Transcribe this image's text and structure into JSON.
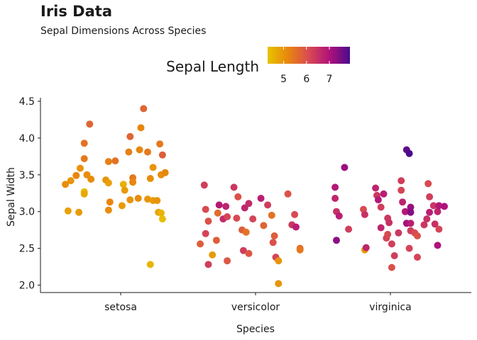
{
  "chart_data": {
    "type": "scatter",
    "title": "Iris Data",
    "subtitle": "Sepal Dimensions Across Species",
    "xlabel": "Species",
    "ylabel": "Sepal Width",
    "categories": [
      "setosa",
      "versicolor",
      "virginica"
    ],
    "ylim": [
      1.9,
      4.55
    ],
    "yticks": [
      "2.0",
      "2.5",
      "3.0",
      "3.5",
      "4.0",
      "4.5"
    ],
    "grid": false,
    "legend": {
      "title": "Sepal Length",
      "position": "top",
      "range": [
        4.3,
        7.9
      ],
      "ticks": [
        "5",
        "6",
        "7"
      ],
      "colors": [
        "#e8c300",
        "#e8860e",
        "#d84a52",
        "#b0127b",
        "#4b0a8c"
      ]
    },
    "points": [
      {
        "species": "setosa",
        "jitter": -0.41,
        "sepal_width": 3.37,
        "sepal_length": 5.1
      },
      {
        "species": "setosa",
        "jitter": -0.37,
        "sepal_width": 3.42,
        "sepal_length": 5.0
      },
      {
        "species": "setosa",
        "jitter": -0.33,
        "sepal_width": 3.49,
        "sepal_length": 5.2
      },
      {
        "species": "setosa",
        "jitter": -0.3,
        "sepal_width": 3.59,
        "sepal_length": 5.0
      },
      {
        "species": "setosa",
        "jitter": -0.27,
        "sepal_width": 3.72,
        "sepal_length": 5.4
      },
      {
        "species": "setosa",
        "jitter": -0.27,
        "sepal_width": 3.93,
        "sepal_length": 5.5
      },
      {
        "species": "setosa",
        "jitter": -0.23,
        "sepal_width": 4.19,
        "sepal_length": 5.7
      },
      {
        "species": "setosa",
        "jitter": -0.25,
        "sepal_width": 3.5,
        "sepal_length": 5.1
      },
      {
        "species": "setosa",
        "jitter": -0.22,
        "sepal_width": 3.44,
        "sepal_length": 5.1
      },
      {
        "species": "setosa",
        "jitter": -0.27,
        "sepal_width": 3.27,
        "sepal_length": 4.4
      },
      {
        "species": "setosa",
        "jitter": -0.27,
        "sepal_width": 3.24,
        "sepal_length": 4.7
      },
      {
        "species": "setosa",
        "jitter": -0.39,
        "sepal_width": 3.01,
        "sepal_length": 4.8
      },
      {
        "species": "setosa",
        "jitter": -0.31,
        "sepal_width": 2.99,
        "sepal_length": 4.9
      },
      {
        "species": "setosa",
        "jitter": -0.09,
        "sepal_width": 3.68,
        "sepal_length": 5.3
      },
      {
        "species": "setosa",
        "jitter": -0.04,
        "sepal_width": 3.69,
        "sepal_length": 5.5
      },
      {
        "species": "setosa",
        "jitter": -0.11,
        "sepal_width": 3.43,
        "sepal_length": 5.0
      },
      {
        "species": "setosa",
        "jitter": -0.09,
        "sepal_width": 3.39,
        "sepal_length": 4.8
      },
      {
        "species": "setosa",
        "jitter": -0.08,
        "sepal_width": 3.13,
        "sepal_length": 5.2
      },
      {
        "species": "setosa",
        "jitter": -0.09,
        "sepal_width": 3.02,
        "sepal_length": 5.1
      },
      {
        "species": "setosa",
        "jitter": 0.01,
        "sepal_width": 3.08,
        "sepal_length": 4.9
      },
      {
        "species": "setosa",
        "jitter": 0.02,
        "sepal_width": 3.37,
        "sepal_length": 4.6
      },
      {
        "species": "setosa",
        "jitter": 0.03,
        "sepal_width": 3.29,
        "sepal_length": 4.9
      },
      {
        "species": "setosa",
        "jitter": 0.06,
        "sepal_width": 3.81,
        "sepal_length": 5.3
      },
      {
        "species": "setosa",
        "jitter": 0.07,
        "sepal_width": 4.02,
        "sepal_length": 5.7
      },
      {
        "species": "setosa",
        "jitter": 0.09,
        "sepal_width": 3.46,
        "sepal_length": 5.4
      },
      {
        "species": "setosa",
        "jitter": 0.09,
        "sepal_width": 3.4,
        "sepal_length": 5.2
      },
      {
        "species": "setosa",
        "jitter": 0.07,
        "sepal_width": 3.16,
        "sepal_length": 5.0
      },
      {
        "species": "setosa",
        "jitter": 0.13,
        "sepal_width": 3.18,
        "sepal_length": 5.1
      },
      {
        "species": "setosa",
        "jitter": 0.14,
        "sepal_width": 3.84,
        "sepal_length": 5.2
      },
      {
        "species": "setosa",
        "jitter": 0.15,
        "sepal_width": 4.14,
        "sepal_length": 5.2
      },
      {
        "species": "setosa",
        "jitter": 0.17,
        "sepal_width": 4.4,
        "sepal_length": 5.7
      },
      {
        "species": "setosa",
        "jitter": 0.2,
        "sepal_width": 3.81,
        "sepal_length": 5.4
      },
      {
        "species": "setosa",
        "jitter": 0.22,
        "sepal_width": 3.45,
        "sepal_length": 5.1
      },
      {
        "species": "setosa",
        "jitter": 0.24,
        "sepal_width": 3.6,
        "sepal_length": 5.0
      },
      {
        "species": "setosa",
        "jitter": 0.2,
        "sepal_width": 3.17,
        "sepal_length": 5.0
      },
      {
        "species": "setosa",
        "jitter": 0.24,
        "sepal_width": 3.15,
        "sepal_length": 4.9
      },
      {
        "species": "setosa",
        "jitter": 0.29,
        "sepal_width": 3.92,
        "sepal_length": 5.4
      },
      {
        "species": "setosa",
        "jitter": 0.31,
        "sepal_width": 3.77,
        "sepal_length": 5.8
      },
      {
        "species": "setosa",
        "jitter": 0.3,
        "sepal_width": 3.5,
        "sepal_length": 5.1
      },
      {
        "species": "setosa",
        "jitter": 0.33,
        "sepal_width": 3.53,
        "sepal_length": 5.2
      },
      {
        "species": "setosa",
        "jitter": 0.27,
        "sepal_width": 3.15,
        "sepal_length": 5.0
      },
      {
        "species": "setosa",
        "jitter": 0.28,
        "sepal_width": 2.99,
        "sepal_length": 4.8
      },
      {
        "species": "setosa",
        "jitter": 0.3,
        "sepal_width": 2.98,
        "sepal_length": 4.5
      },
      {
        "species": "setosa",
        "jitter": 0.31,
        "sepal_width": 2.9,
        "sepal_length": 4.4
      },
      {
        "species": "setosa",
        "jitter": 0.22,
        "sepal_width": 2.28,
        "sepal_length": 4.5
      },
      {
        "species": "versicolor",
        "jitter": -0.41,
        "sepal_width": 2.56,
        "sepal_length": 5.8
      },
      {
        "species": "versicolor",
        "jitter": -0.37,
        "sepal_width": 3.03,
        "sepal_length": 6.1
      },
      {
        "species": "versicolor",
        "jitter": -0.37,
        "sepal_width": 2.7,
        "sepal_length": 6.2
      },
      {
        "species": "versicolor",
        "jitter": -0.38,
        "sepal_width": 3.36,
        "sepal_length": 6.3
      },
      {
        "species": "versicolor",
        "jitter": -0.35,
        "sepal_width": 2.87,
        "sepal_length": 6.0
      },
      {
        "species": "versicolor",
        "jitter": -0.32,
        "sepal_width": 2.41,
        "sepal_length": 4.9
      },
      {
        "species": "versicolor",
        "jitter": -0.35,
        "sepal_width": 2.28,
        "sepal_length": 6.3
      },
      {
        "species": "versicolor",
        "jitter": -0.27,
        "sepal_width": 3.09,
        "sepal_length": 6.9
      },
      {
        "species": "versicolor",
        "jitter": -0.28,
        "sepal_width": 2.98,
        "sepal_length": 5.6
      },
      {
        "species": "versicolor",
        "jitter": -0.22,
        "sepal_width": 3.07,
        "sepal_length": 6.7
      },
      {
        "species": "versicolor",
        "jitter": -0.24,
        "sepal_width": 2.9,
        "sepal_length": 6.6
      },
      {
        "species": "versicolor",
        "jitter": -0.29,
        "sepal_width": 2.61,
        "sepal_length": 5.8
      },
      {
        "species": "versicolor",
        "jitter": -0.21,
        "sepal_width": 2.93,
        "sepal_length": 6.2
      },
      {
        "species": "versicolor",
        "jitter": -0.21,
        "sepal_width": 2.33,
        "sepal_length": 5.9
      },
      {
        "species": "versicolor",
        "jitter": -0.16,
        "sepal_width": 3.33,
        "sepal_length": 6.4
      },
      {
        "species": "versicolor",
        "jitter": -0.13,
        "sepal_width": 3.2,
        "sepal_length": 6.0
      },
      {
        "species": "versicolor",
        "jitter": -0.14,
        "sepal_width": 2.91,
        "sepal_length": 6.1
      },
      {
        "species": "versicolor",
        "jitter": -0.08,
        "sepal_width": 3.05,
        "sepal_length": 6.7
      },
      {
        "species": "versicolor",
        "jitter": -0.05,
        "sepal_width": 3.11,
        "sepal_length": 6.6
      },
      {
        "species": "versicolor",
        "jitter": -0.1,
        "sepal_width": 2.75,
        "sepal_length": 5.8
      },
      {
        "species": "versicolor",
        "jitter": -0.07,
        "sepal_width": 2.72,
        "sepal_length": 5.5
      },
      {
        "species": "versicolor",
        "jitter": -0.09,
        "sepal_width": 2.47,
        "sepal_length": 6.3
      },
      {
        "species": "versicolor",
        "jitter": -0.02,
        "sepal_width": 2.9,
        "sepal_length": 6.2
      },
      {
        "species": "versicolor",
        "jitter": -0.05,
        "sepal_width": 2.43,
        "sepal_length": 5.9
      },
      {
        "species": "versicolor",
        "jitter": 0.04,
        "sepal_width": 3.18,
        "sepal_length": 6.8
      },
      {
        "species": "versicolor",
        "jitter": 0.09,
        "sepal_width": 3.09,
        "sepal_length": 6.3
      },
      {
        "species": "versicolor",
        "jitter": 0.06,
        "sepal_width": 2.81,
        "sepal_length": 5.7
      },
      {
        "species": "versicolor",
        "jitter": 0.12,
        "sepal_width": 2.95,
        "sepal_length": 5.5
      },
      {
        "species": "versicolor",
        "jitter": 0.14,
        "sepal_width": 2.67,
        "sepal_length": 5.8
      },
      {
        "species": "versicolor",
        "jitter": 0.13,
        "sepal_width": 2.58,
        "sepal_length": 6.0
      },
      {
        "species": "versicolor",
        "jitter": 0.15,
        "sepal_width": 2.38,
        "sepal_length": 6.2
      },
      {
        "species": "versicolor",
        "jitter": 0.17,
        "sepal_width": 2.33,
        "sepal_length": 5.0
      },
      {
        "species": "versicolor",
        "jitter": 0.17,
        "sepal_width": 2.02,
        "sepal_length": 5.0
      },
      {
        "species": "versicolor",
        "jitter": 0.24,
        "sepal_width": 3.24,
        "sepal_length": 6.0
      },
      {
        "species": "versicolor",
        "jitter": 0.27,
        "sepal_width": 2.82,
        "sepal_length": 6.4
      },
      {
        "species": "versicolor",
        "jitter": 0.29,
        "sepal_width": 2.96,
        "sepal_length": 6.1
      },
      {
        "species": "versicolor",
        "jitter": 0.3,
        "sepal_width": 2.79,
        "sepal_length": 6.8
      },
      {
        "species": "versicolor",
        "jitter": 0.33,
        "sepal_width": 2.5,
        "sepal_length": 5.6
      },
      {
        "species": "versicolor",
        "jitter": 0.33,
        "sepal_width": 2.48,
        "sepal_length": 5.4
      },
      {
        "species": "virginica",
        "jitter": -0.41,
        "sepal_width": 3.33,
        "sepal_length": 6.9
      },
      {
        "species": "virginica",
        "jitter": -0.41,
        "sepal_width": 3.18,
        "sepal_length": 6.7
      },
      {
        "species": "virginica",
        "jitter": -0.4,
        "sepal_width": 3.0,
        "sepal_length": 6.5
      },
      {
        "species": "virginica",
        "jitter": -0.4,
        "sepal_width": 2.61,
        "sepal_length": 7.3
      },
      {
        "species": "virginica",
        "jitter": -0.38,
        "sepal_width": 2.94,
        "sepal_length": 6.8
      },
      {
        "species": "virginica",
        "jitter": -0.34,
        "sepal_width": 3.6,
        "sepal_length": 7.2
      },
      {
        "species": "virginica",
        "jitter": -0.31,
        "sepal_width": 2.76,
        "sepal_length": 6.3
      },
      {
        "species": "virginica",
        "jitter": -0.2,
        "sepal_width": 3.03,
        "sepal_length": 6.1
      },
      {
        "species": "virginica",
        "jitter": -0.19,
        "sepal_width": 2.96,
        "sepal_length": 6.5
      },
      {
        "species": "virginica",
        "jitter": -0.19,
        "sepal_width": 2.48,
        "sepal_length": 4.9
      },
      {
        "species": "virginica",
        "jitter": -0.18,
        "sepal_width": 2.51,
        "sepal_length": 6.7
      },
      {
        "species": "virginica",
        "jitter": -0.11,
        "sepal_width": 3.32,
        "sepal_length": 6.7
      },
      {
        "species": "virginica",
        "jitter": -0.1,
        "sepal_width": 3.22,
        "sepal_length": 6.4
      },
      {
        "species": "virginica",
        "jitter": -0.09,
        "sepal_width": 3.16,
        "sepal_length": 6.9
      },
      {
        "species": "virginica",
        "jitter": -0.07,
        "sepal_width": 3.06,
        "sepal_length": 6.3
      },
      {
        "species": "virginica",
        "jitter": -0.07,
        "sepal_width": 2.78,
        "sepal_length": 6.7
      },
      {
        "species": "virginica",
        "jitter": -0.05,
        "sepal_width": 3.24,
        "sepal_length": 6.8
      },
      {
        "species": "virginica",
        "jitter": -0.03,
        "sepal_width": 2.64,
        "sepal_length": 6.2
      },
      {
        "species": "virginica",
        "jitter": -0.02,
        "sepal_width": 2.91,
        "sepal_length": 6.4
      },
      {
        "species": "virginica",
        "jitter": -0.01,
        "sepal_width": 2.85,
        "sepal_length": 6.5
      },
      {
        "species": "virginica",
        "jitter": -0.02,
        "sepal_width": 2.69,
        "sepal_length": 6.1
      },
      {
        "species": "virginica",
        "jitter": 0.01,
        "sepal_width": 2.56,
        "sepal_length": 6.3
      },
      {
        "species": "virginica",
        "jitter": 0.01,
        "sepal_width": 2.24,
        "sepal_length": 6.0
      },
      {
        "species": "virginica",
        "jitter": 0.03,
        "sepal_width": 2.4,
        "sepal_length": 6.3
      },
      {
        "species": "virginica",
        "jitter": 0.06,
        "sepal_width": 2.71,
        "sepal_length": 6.4
      },
      {
        "species": "virginica",
        "jitter": 0.08,
        "sepal_width": 3.42,
        "sepal_length": 6.3
      },
      {
        "species": "virginica",
        "jitter": 0.08,
        "sepal_width": 3.29,
        "sepal_length": 6.2
      },
      {
        "species": "virginica",
        "jitter": 0.09,
        "sepal_width": 3.13,
        "sepal_length": 6.7
      },
      {
        "species": "virginica",
        "jitter": 0.11,
        "sepal_width": 3.0,
        "sepal_length": 6.9
      },
      {
        "species": "virginica",
        "jitter": 0.12,
        "sepal_width": 2.84,
        "sepal_length": 7.1
      },
      {
        "species": "virginica",
        "jitter": 0.12,
        "sepal_width": 3.84,
        "sepal_length": 7.7
      },
      {
        "species": "virginica",
        "jitter": 0.14,
        "sepal_width": 3.79,
        "sepal_length": 7.9
      },
      {
        "species": "virginica",
        "jitter": 0.15,
        "sepal_width": 3.06,
        "sepal_length": 7.2
      },
      {
        "species": "virginica",
        "jitter": 0.15,
        "sepal_width": 2.99,
        "sepal_length": 7.4
      },
      {
        "species": "virginica",
        "jitter": 0.15,
        "sepal_width": 2.84,
        "sepal_length": 6.8
      },
      {
        "species": "virginica",
        "jitter": 0.15,
        "sepal_width": 2.74,
        "sepal_length": 6.3
      },
      {
        "species": "virginica",
        "jitter": 0.14,
        "sepal_width": 2.5,
        "sepal_length": 6.2
      },
      {
        "species": "virginica",
        "jitter": 0.18,
        "sepal_width": 2.71,
        "sepal_length": 6.1
      },
      {
        "species": "virginica",
        "jitter": 0.2,
        "sepal_width": 2.67,
        "sepal_length": 6.0
      },
      {
        "species": "virginica",
        "jitter": 0.2,
        "sepal_width": 2.38,
        "sepal_length": 6.2
      },
      {
        "species": "virginica",
        "jitter": 0.25,
        "sepal_width": 2.82,
        "sepal_length": 6.4
      },
      {
        "species": "virginica",
        "jitter": 0.27,
        "sepal_width": 2.9,
        "sepal_length": 6.5
      },
      {
        "species": "virginica",
        "jitter": 0.29,
        "sepal_width": 2.99,
        "sepal_length": 6.8
      },
      {
        "species": "virginica",
        "jitter": 0.29,
        "sepal_width": 3.2,
        "sepal_length": 6.3
      },
      {
        "species": "virginica",
        "jitter": 0.28,
        "sepal_width": 3.38,
        "sepal_length": 6.1
      },
      {
        "species": "virginica",
        "jitter": 0.32,
        "sepal_width": 3.08,
        "sepal_length": 6.4
      },
      {
        "species": "virginica",
        "jitter": 0.33,
        "sepal_width": 2.83,
        "sepal_length": 6.5
      },
      {
        "species": "virginica",
        "jitter": 0.36,
        "sepal_width": 2.76,
        "sepal_length": 6.2
      },
      {
        "species": "virginica",
        "jitter": 0.35,
        "sepal_width": 3.0,
        "sepal_length": 6.7
      },
      {
        "species": "virginica",
        "jitter": 0.35,
        "sepal_width": 2.54,
        "sepal_length": 7.0
      },
      {
        "species": "virginica",
        "jitter": 0.36,
        "sepal_width": 3.08,
        "sepal_length": 6.9
      },
      {
        "species": "virginica",
        "jitter": 0.4,
        "sepal_width": 3.07,
        "sepal_length": 7.0
      }
    ]
  }
}
